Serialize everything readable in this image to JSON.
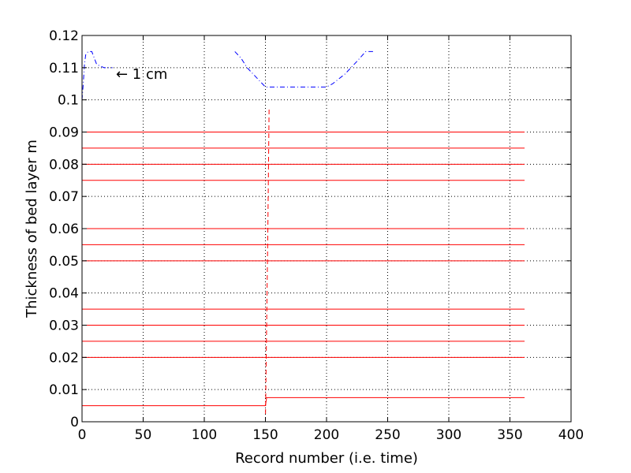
{
  "chart_data": {
    "type": "line",
    "xlabel": "Record number (i.e. time)",
    "ylabel": "Thickness of bed layer m",
    "xlim": [
      0,
      400
    ],
    "ylim": [
      0,
      0.12
    ],
    "xticks": [
      0,
      50,
      100,
      150,
      200,
      250,
      300,
      350,
      400
    ],
    "xtick_labels": [
      "0",
      "50",
      "100",
      "150",
      "200",
      "250",
      "300",
      "350",
      "400"
    ],
    "yticks": [
      0,
      0.01,
      0.02,
      0.03,
      0.04,
      0.05,
      0.06,
      0.07,
      0.08,
      0.09,
      0.1,
      0.11,
      0.12
    ],
    "ytick_labels": [
      "0",
      "0.01",
      "0.02",
      "0.03",
      "0.04",
      "0.05",
      "0.06",
      "0.07",
      "0.08",
      "0.09",
      "0.1",
      "0.11",
      "0.12"
    ],
    "grid": true,
    "annotation": {
      "text": "← 1 cm",
      "x": 20,
      "y": 0.1075
    },
    "series": [
      {
        "color": "#ff0000",
        "style": "solid",
        "x": [
          0,
          150,
          151,
          362
        ],
        "y": [
          0.005,
          0.005,
          0.0075,
          0.0075
        ]
      },
      {
        "color": "#ff0000",
        "style": "solid",
        "x": [
          0,
          362
        ],
        "y": [
          0.02,
          0.02
        ]
      },
      {
        "color": "#ff0000",
        "style": "solid",
        "x": [
          0,
          362
        ],
        "y": [
          0.025,
          0.025
        ]
      },
      {
        "color": "#ff0000",
        "style": "solid",
        "x": [
          0,
          362
        ],
        "y": [
          0.03,
          0.03
        ]
      },
      {
        "color": "#ff0000",
        "style": "solid",
        "x": [
          0,
          362
        ],
        "y": [
          0.035,
          0.035
        ]
      },
      {
        "color": "#ff0000",
        "style": "solid",
        "x": [
          0,
          362
        ],
        "y": [
          0.05,
          0.05
        ]
      },
      {
        "color": "#ff0000",
        "style": "solid",
        "x": [
          0,
          362
        ],
        "y": [
          0.055,
          0.055
        ]
      },
      {
        "color": "#ff0000",
        "style": "solid",
        "x": [
          0,
          362
        ],
        "y": [
          0.06,
          0.06
        ]
      },
      {
        "color": "#ff0000",
        "style": "solid",
        "x": [
          0,
          362
        ],
        "y": [
          0.075,
          0.075
        ]
      },
      {
        "color": "#ff0000",
        "style": "solid",
        "x": [
          0,
          362
        ],
        "y": [
          0.08,
          0.08
        ]
      },
      {
        "color": "#ff0000",
        "style": "solid",
        "x": [
          0,
          362
        ],
        "y": [
          0.085,
          0.085
        ]
      },
      {
        "color": "#ff0000",
        "style": "solid",
        "x": [
          0,
          362
        ],
        "y": [
          0.09,
          0.09
        ]
      },
      {
        "color": "#ff0000",
        "style": "dashed",
        "x": [
          150,
          151,
          152,
          153
        ],
        "y": [
          0.0,
          0.03,
          0.06,
          0.097
        ]
      },
      {
        "color": "#0000ff",
        "style": "dashdot",
        "x": [
          0,
          1,
          2,
          3,
          5,
          7,
          8,
          12,
          18,
          25
        ],
        "y": [
          0.1,
          0.105,
          0.111,
          0.114,
          0.115,
          0.115,
          0.115,
          0.111,
          0.11,
          0.11
        ]
      },
      {
        "color": "#0000ff",
        "style": "dashdot",
        "x": [
          125,
          130,
          135,
          140,
          145,
          150,
          155,
          165,
          175,
          190,
          200,
          205,
          215,
          225,
          232,
          238
        ],
        "y": [
          0.115,
          0.113,
          0.11,
          0.108,
          0.106,
          0.104,
          0.104,
          0.104,
          0.104,
          0.104,
          0.104,
          0.105,
          0.108,
          0.112,
          0.115,
          0.115
        ]
      }
    ]
  }
}
